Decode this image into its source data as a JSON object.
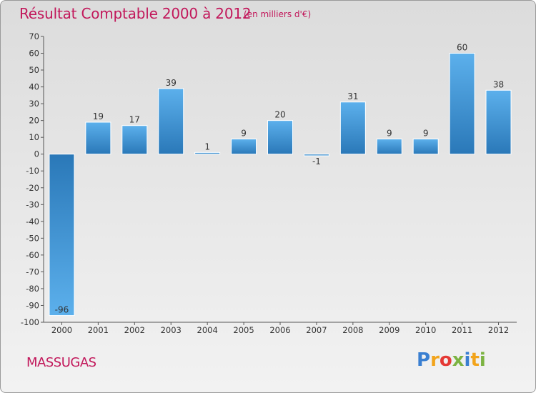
{
  "header": {
    "title": "Résultat Comptable 2000 à 2012",
    "subtitle": "(en milliers d'€)"
  },
  "footer": {
    "commune": "MASSUGAS",
    "logo": {
      "letters": [
        "P",
        "r",
        "o",
        "x",
        "i",
        "t",
        "i"
      ],
      "colors": [
        "#3a7fd1",
        "#f2a41c",
        "#e53935",
        "#7cb342",
        "#3a7fd1",
        "#f2a41c",
        "#7cb342"
      ]
    }
  },
  "colors": {
    "accent": "#c2185b",
    "bar_light": "#5cb0ec",
    "bar_dark": "#2a78b8"
  },
  "chart_data": {
    "type": "bar",
    "title": "Résultat Comptable 2000 à 2012",
    "subtitle": "(en milliers d'€)",
    "categories": [
      "2000",
      "2001",
      "2002",
      "2003",
      "2004",
      "2005",
      "2006",
      "2007",
      "2008",
      "2009",
      "2010",
      "2011",
      "2012"
    ],
    "values": [
      -96,
      19,
      17,
      39,
      1,
      9,
      20,
      -1,
      31,
      9,
      9,
      60,
      38
    ],
    "value_labels": [
      "-96",
      "19",
      "17",
      "39",
      "1",
      "9",
      "20",
      "-1",
      "31",
      "9",
      "9",
      "60",
      "38"
    ],
    "ylim": [
      -100,
      70
    ],
    "yticks": [
      70,
      60,
      50,
      40,
      30,
      20,
      10,
      0,
      -10,
      -20,
      -30,
      -40,
      -50,
      -60,
      -70,
      -80,
      -90,
      -100
    ],
    "ytick_labels": [
      "70",
      "60",
      "50",
      "40",
      "30",
      "20",
      "10",
      "0",
      "-10",
      "-20",
      "-30",
      "-40",
      "-50",
      "-60",
      "-70",
      "-80",
      "-90",
      "-100"
    ],
    "grid": false
  }
}
